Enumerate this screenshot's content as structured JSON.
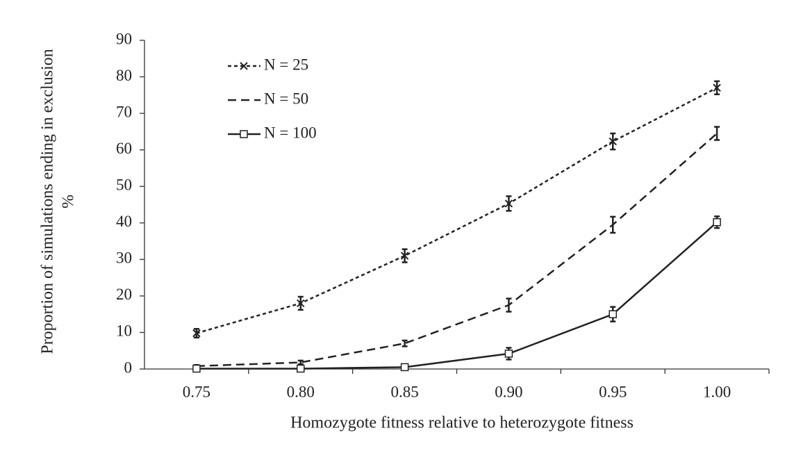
{
  "chart_data": {
    "type": "line",
    "x_label": "Homozygote fitness relative  to heterozygote fitness",
    "y_label": [
      "Proportion of simulations  ending  in exclusion",
      "%"
    ],
    "categories": [
      "0.75",
      "0.80",
      "0.85",
      "0.90",
      "0.95",
      "1.00"
    ],
    "ylim": [
      0,
      90
    ],
    "yticks": [
      0,
      10,
      20,
      30,
      40,
      50,
      60,
      70,
      80,
      90
    ],
    "grid": false,
    "legend": "top-left",
    "series": [
      {
        "name": "N = 25",
        "color": "#222222",
        "dash": "dotted",
        "marker": "x",
        "values": [
          9.8,
          18,
          31,
          45.3,
          62.3,
          77
        ],
        "errors": [
          1.2,
          1.8,
          1.8,
          2,
          2.2,
          1.8
        ]
      },
      {
        "name": "N = 50",
        "color": "#222222",
        "dash": "dashed",
        "marker": "none",
        "values": [
          0.8,
          1.8,
          7,
          17.5,
          39.5,
          64.5
        ],
        "errors": [
          0.3,
          0.5,
          0.8,
          1.8,
          2.2,
          1.8
        ]
      },
      {
        "name": "N = 100",
        "color": "#222222",
        "dash": "solid",
        "marker": "square",
        "values": [
          0.1,
          0.1,
          0.5,
          4.2,
          15,
          40.2
        ],
        "errors": [
          0.2,
          0.2,
          0.5,
          1.6,
          2,
          1.6
        ]
      }
    ]
  }
}
